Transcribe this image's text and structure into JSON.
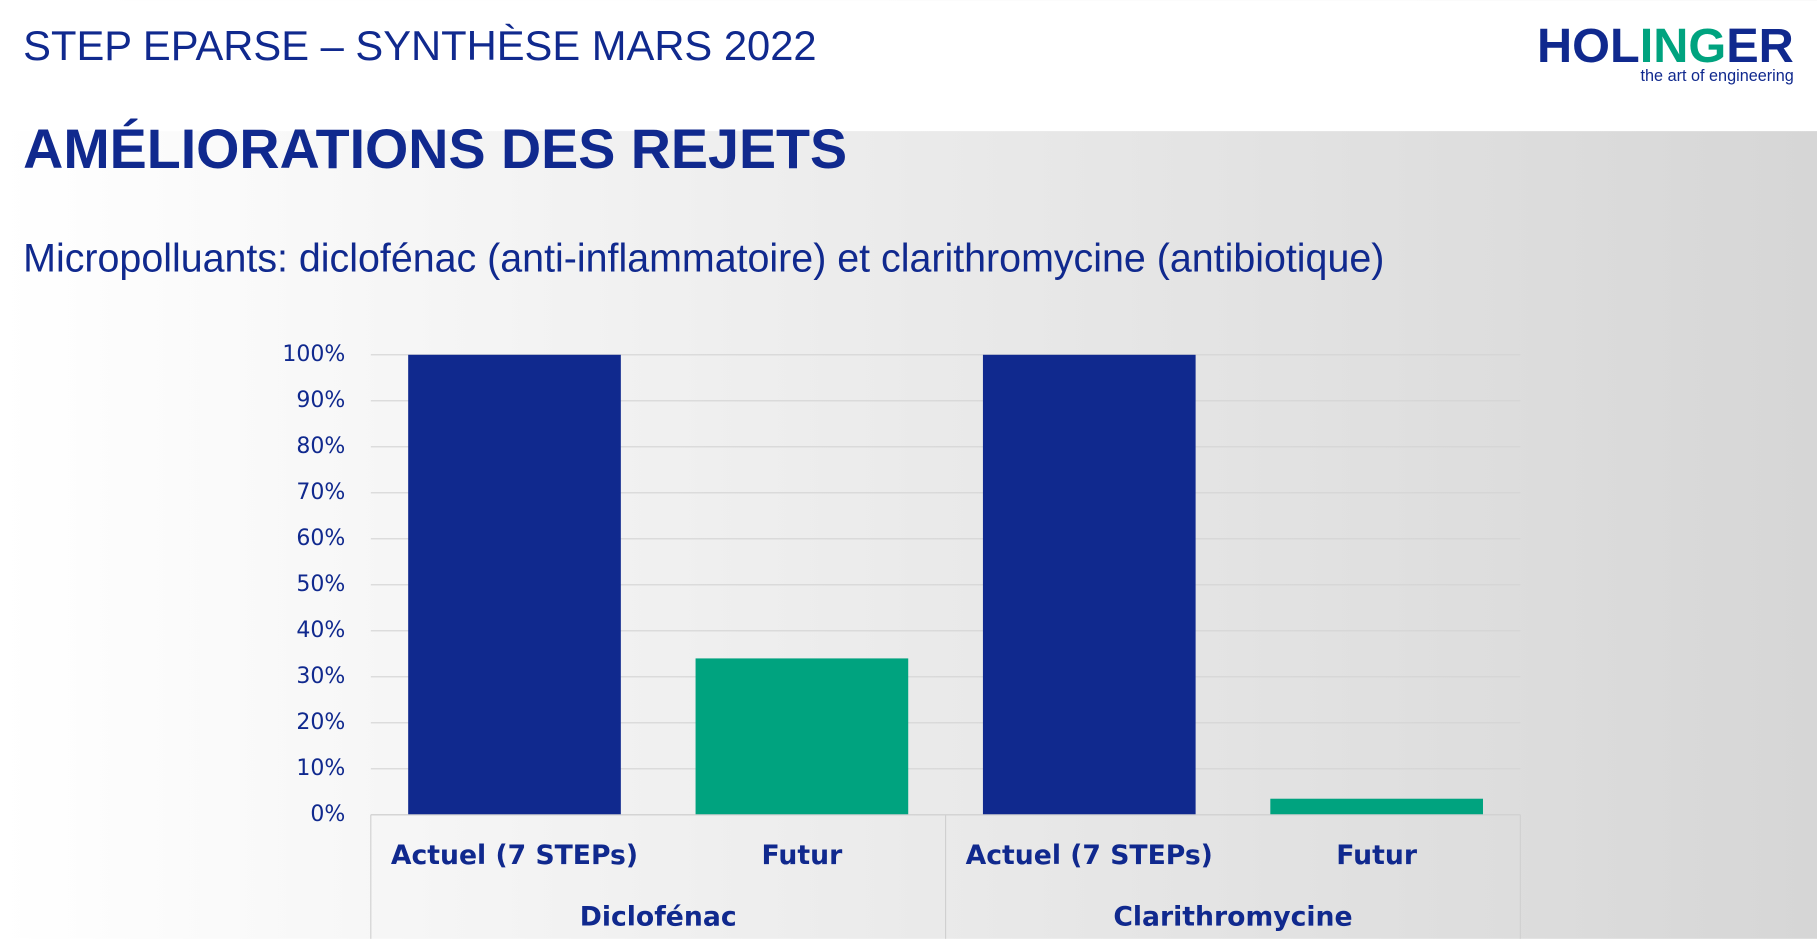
{
  "header": {
    "title": "STEP EPARSE – SYNTHÈSE MARS 2022",
    "logo": [
      "HOL",
      "ING",
      "ER"
    ],
    "tagline": "the art of engineering"
  },
  "heading": "AMÉLIORATIONS DES REJETS",
  "subtitle": "Micropolluants: diclofénac (anti-inflammatoire) et clarithromycine (antibiotique)",
  "chart_data": {
    "type": "bar",
    "groups": [
      {
        "name": "Diclofénac",
        "categories": [
          "Actuel (7 STEPs)",
          "Futur"
        ],
        "values": [
          100,
          34
        ],
        "colors": [
          "#10298e",
          "#00a37f"
        ]
      },
      {
        "name": "Clarithromycine",
        "categories": [
          "Actuel (7 STEPs)",
          "Futur"
        ],
        "values": [
          100,
          3.5
        ],
        "colors": [
          "#10298e",
          "#00a37f"
        ]
      }
    ],
    "ylim": [
      0,
      100
    ],
    "yticks": [
      {
        "value": 0,
        "label": "0%"
      },
      {
        "value": 10,
        "label": "10%"
      },
      {
        "value": 20,
        "label": "20%"
      },
      {
        "value": 30,
        "label": "30%"
      },
      {
        "value": 40,
        "label": "40%"
      },
      {
        "value": 50,
        "label": "50%"
      },
      {
        "value": 60,
        "label": "60%"
      },
      {
        "value": 70,
        "label": "70%"
      },
      {
        "value": 80,
        "label": "80%"
      },
      {
        "value": 90,
        "label": "90%"
      },
      {
        "value": 100,
        "label": "100%"
      }
    ],
    "grid": true
  }
}
